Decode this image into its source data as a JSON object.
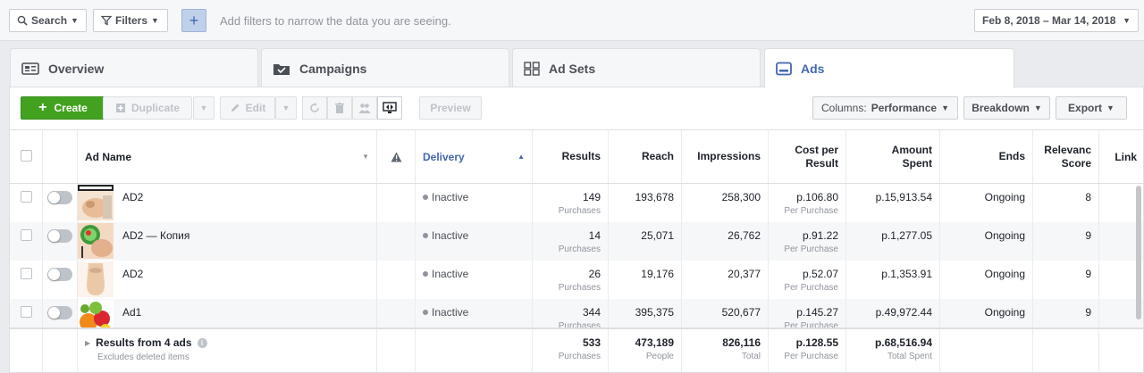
{
  "filterbar": {
    "search_label": "Search",
    "filters_label": "Filters",
    "hint": "Add filters to narrow the data you are seeing.",
    "date_range": "Feb 8, 2018 – Mar 14, 2018"
  },
  "tabs": [
    {
      "label": "Overview",
      "icon": "overview-icon"
    },
    {
      "label": "Campaigns",
      "icon": "folder-icon"
    },
    {
      "label": "Ad Sets",
      "icon": "grid-icon"
    },
    {
      "label": "Ads",
      "icon": "ad-icon",
      "active": true
    }
  ],
  "toolbar": {
    "create_label": "Create",
    "duplicate_label": "Duplicate",
    "edit_label": "Edit",
    "preview_label": "Preview",
    "columns_prefix": "Columns:",
    "columns_value": "Performance",
    "breakdown_label": "Breakdown",
    "export_label": "Export"
  },
  "columns": {
    "ad_name": "Ad Name",
    "delivery": "Delivery",
    "results": "Results",
    "reach": "Reach",
    "impressions": "Impressions",
    "cost_l1": "Cost per",
    "cost_l2": "Result",
    "spent_l1": "Amount",
    "spent_l2": "Spent",
    "ends": "Ends",
    "relevance_l1": "Relevanc",
    "relevance_l2": "Score",
    "links": "Link"
  },
  "rows": [
    {
      "name": "AD2",
      "delivery": "Inactive",
      "results": "149",
      "results_sub": "Purchases",
      "reach": "193,678",
      "impressions": "258,300",
      "cost": "p.106.80",
      "cost_sub": "Per Purchase",
      "spent": "p.15,913.54",
      "ends": "Ongoing",
      "relevance": "8"
    },
    {
      "name": "AD2 — Копия",
      "delivery": "Inactive",
      "results": "14",
      "results_sub": "Purchases",
      "reach": "25,071",
      "impressions": "26,762",
      "cost": "p.91.22",
      "cost_sub": "Per Purchase",
      "spent": "p.1,277.05",
      "ends": "Ongoing",
      "relevance": "9"
    },
    {
      "name": "AD2",
      "delivery": "Inactive",
      "results": "26",
      "results_sub": "Purchases",
      "reach": "19,176",
      "impressions": "20,377",
      "cost": "p.52.07",
      "cost_sub": "Per Purchase",
      "spent": "p.1,353.91",
      "ends": "Ongoing",
      "relevance": "9"
    },
    {
      "name": "Ad1",
      "delivery": "Inactive",
      "results": "344",
      "results_sub": "Purchases",
      "reach": "395,375",
      "impressions": "520,677",
      "cost": "p.145.27",
      "cost_sub": "Per Purchase",
      "spent": "p.49,972.44",
      "ends": "Ongoing",
      "relevance": "9"
    }
  ],
  "totals": {
    "label": "Results from 4 ads",
    "sublabel": "Excludes deleted items",
    "results": "533",
    "results_sub": "Purchases",
    "reach": "473,189",
    "reach_sub": "People",
    "impressions": "826,116",
    "impressions_sub": "Total",
    "cost": "p.128.55",
    "cost_sub": "Per Purchase",
    "spent": "p.68,516.94",
    "spent_sub": "Total Spent"
  },
  "colors": {
    "accent": "#4267b2",
    "create": "#42a220"
  }
}
